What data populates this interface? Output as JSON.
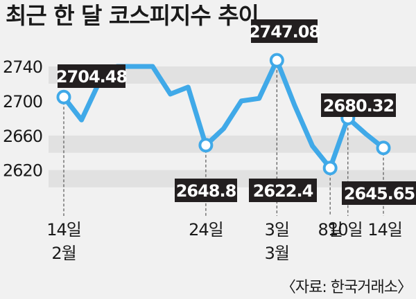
{
  "chart_data": {
    "type": "line",
    "title": "최근 한 달 코스피지수 추이",
    "source": "〈자료: 한국거래소〉",
    "ylim": [
      2600,
      2760
    ],
    "yticks": [
      2620,
      2660,
      2700,
      2740
    ],
    "grid": "alternating horizontal bands",
    "series": [
      {
        "values": [
          2704.48,
          2678,
          2722,
          2740,
          2740,
          2740,
          2708,
          2716,
          2648.8,
          2668,
          2700,
          2703,
          2747.08,
          2695,
          2648,
          2622.4,
          2680.32,
          2662,
          2645.65
        ]
      }
    ],
    "x_tick_labels": [
      {
        "index": 0,
        "lines": [
          "14일",
          "2월"
        ]
      },
      {
        "index": 8,
        "lines": [
          "24일"
        ]
      },
      {
        "index": 12,
        "lines": [
          "3일",
          "3월"
        ]
      },
      {
        "index": 15,
        "lines": [
          "8일"
        ]
      },
      {
        "index": 16,
        "lines": [
          "10일"
        ]
      },
      {
        "index": 18,
        "lines": [
          "14일"
        ]
      }
    ],
    "labeled_points": [
      {
        "index": 0,
        "label": "2704.48"
      },
      {
        "index": 8,
        "label": "2648.8"
      },
      {
        "index": 12,
        "label": "2747.08"
      },
      {
        "index": 15,
        "label": "2622.4"
      },
      {
        "index": 16,
        "label": "2680.32"
      },
      {
        "index": 18,
        "label": "2645.65"
      }
    ],
    "colors": {
      "line": "#40a9e8",
      "band": "#e1e1e1",
      "label_bg": "#231f20",
      "marker_fill": "#ffffff"
    }
  }
}
